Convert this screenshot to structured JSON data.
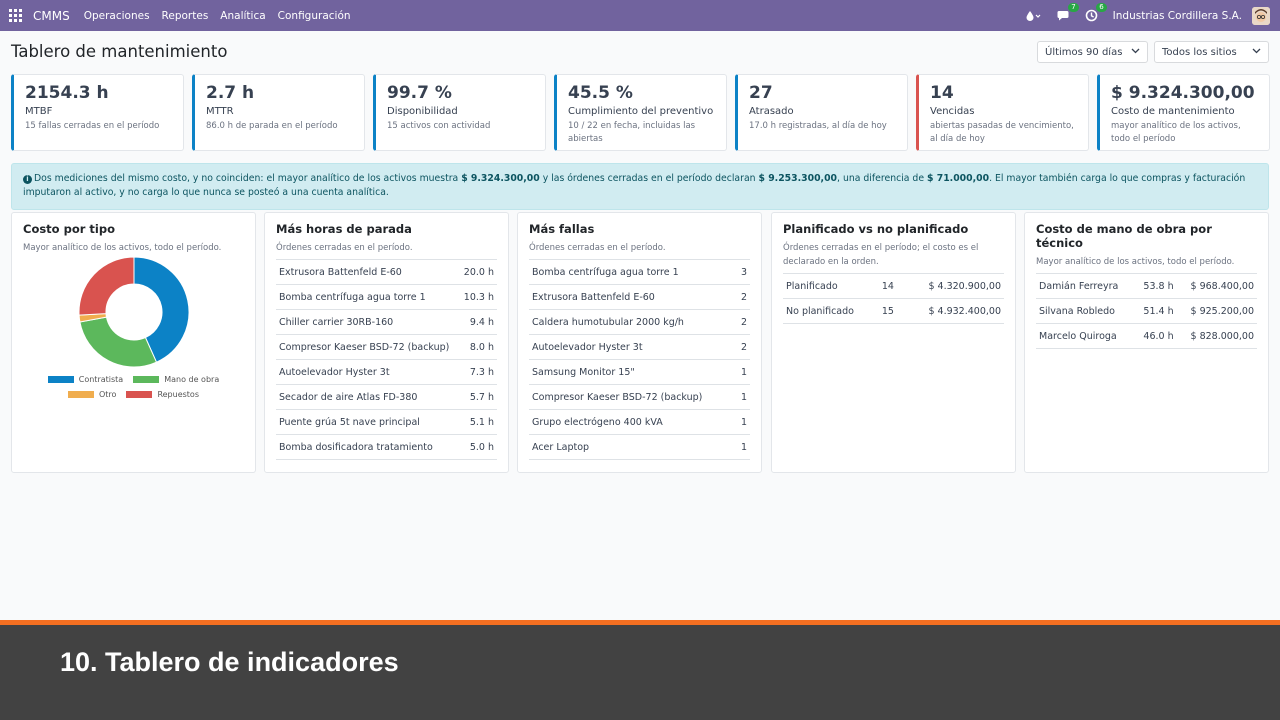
{
  "navbar": {
    "brand": "CMMS",
    "menu": [
      "Operaciones",
      "Reportes",
      "Analítica",
      "Configuración"
    ],
    "chat_badge": "7",
    "activity_badge": "6",
    "company": "Industrias Cordillera S.A.",
    "icons": [
      "apps-grid-icon",
      "drop-icon",
      "chat-icon",
      "clock-icon"
    ]
  },
  "header": {
    "title": "Tablero de mantenimiento",
    "period_filter": "Últimos 90 días",
    "site_filter": "Todos los sitios"
  },
  "kpis": [
    {
      "value": "2154.3 h",
      "label": "MTBF",
      "sub": "15 fallas cerradas en el período"
    },
    {
      "value": "2.7 h",
      "label": "MTTR",
      "sub": "86.0 h de parada en el período"
    },
    {
      "value": "99.7 %",
      "label": "Disponibilidad",
      "sub": "15 activos con actividad"
    },
    {
      "value": "45.5 %",
      "label": "Cumplimiento del preventivo",
      "sub": "10 / 22 en fecha, incluidas las abiertas"
    },
    {
      "value": "27",
      "label": "Atrasado",
      "sub": "17.0 h registradas, al día de hoy"
    },
    {
      "value": "14",
      "label": "Vencidas",
      "sub": "abiertas pasadas de vencimiento, al día de hoy"
    },
    {
      "value": "$ 9.324.300,00",
      "label": "Costo de mantenimiento",
      "sub": "mayor analítico de los activos, todo el período"
    }
  ],
  "alert": {
    "part1": "Dos mediciones del mismo costo, y no coinciden: el mayor analítico de los activos muestra ",
    "amount1": "$ 9.324.300,00",
    "part2": " y las órdenes cerradas en el período declaran ",
    "amount2": "$ 9.253.300,00",
    "part3": ", una diferencia de ",
    "amount3": "$ 71.000,00",
    "part4": ". El mayor también carga lo que compras y facturación imputaron al activo, y no carga lo que nunca se posteó a una cuenta analítica."
  },
  "cost_by_type": {
    "title": "Costo por tipo",
    "desc": "Mayor analítico de los activos, todo el período.",
    "chart_data": {
      "type": "pie",
      "categories": [
        "Contratista",
        "Mano de obra",
        "Otro",
        "Repuestos"
      ],
      "values": [
        43.3,
        28.8,
        2.0,
        25.9
      ],
      "colors": [
        "#0c82c6",
        "#5cb85c",
        "#f0ad4e",
        "#d9534f"
      ],
      "legend": "bottom"
    }
  },
  "downtime": {
    "title": "Más horas de parada",
    "desc": "Órdenes cerradas en el período.",
    "rows": [
      {
        "name": "Extrusora Battenfeld E-60",
        "value": "20.0 h"
      },
      {
        "name": "Bomba centrífuga agua torre 1",
        "value": "10.3 h"
      },
      {
        "name": "Chiller carrier 30RB-160",
        "value": "9.4 h"
      },
      {
        "name": "Compresor Kaeser BSD-72 (backup)",
        "value": "8.0 h"
      },
      {
        "name": "Autoelevador Hyster 3t",
        "value": "7.3 h"
      },
      {
        "name": "Secador de aire Atlas FD-380",
        "value": "5.7 h"
      },
      {
        "name": "Puente grúa 5t nave principal",
        "value": "5.1 h"
      },
      {
        "name": "Bomba dosificadora tratamiento",
        "value": "5.0 h"
      }
    ]
  },
  "failures": {
    "title": "Más fallas",
    "desc": "Órdenes cerradas en el período.",
    "rows": [
      {
        "name": "Bomba centrífuga agua torre 1",
        "value": "3"
      },
      {
        "name": "Extrusora Battenfeld E-60",
        "value": "2"
      },
      {
        "name": "Caldera humotubular 2000 kg/h",
        "value": "2"
      },
      {
        "name": "Autoelevador Hyster 3t",
        "value": "2"
      },
      {
        "name": "Samsung Monitor 15\"",
        "value": "1"
      },
      {
        "name": "Compresor Kaeser BSD-72 (backup)",
        "value": "1"
      },
      {
        "name": "Grupo electrógeno 400 kVA",
        "value": "1"
      },
      {
        "name": "Acer Laptop",
        "value": "1"
      }
    ]
  },
  "planned": {
    "title": "Planificado vs no planificado",
    "desc": "Órdenes cerradas en el período; el costo es el declarado en la orden.",
    "rows": [
      {
        "name": "Planificado",
        "count": "14",
        "cost": "$ 4.320.900,00"
      },
      {
        "name": "No planificado",
        "count": "15",
        "cost": "$ 4.932.400,00"
      }
    ]
  },
  "labor": {
    "title": "Costo de mano de obra por técnico",
    "desc": "Mayor analítico de los activos, todo el período.",
    "rows": [
      {
        "name": "Damián Ferreyra",
        "hours": "53.8 h",
        "cost": "$ 968.400,00"
      },
      {
        "name": "Silvana Robledo",
        "hours": "51.4 h",
        "cost": "$ 925.200,00"
      },
      {
        "name": "Marcelo Quiroga",
        "hours": "46.0 h",
        "cost": "$ 828.000,00"
      }
    ]
  },
  "banner": {
    "text": "10. Tablero de indicadores"
  }
}
